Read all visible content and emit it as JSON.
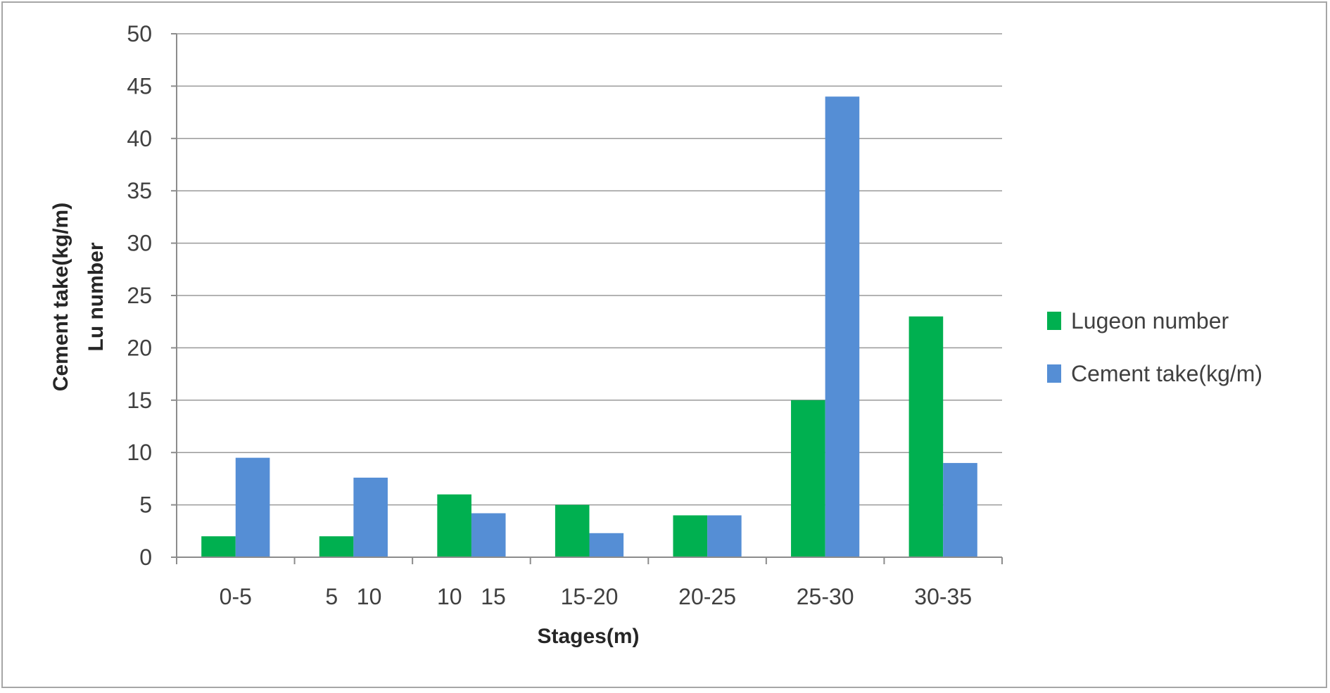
{
  "chart_data": {
    "type": "bar",
    "title": "",
    "xlabel": "Stages(m)",
    "ylabel_lines": [
      "Cement take(kg/m)",
      "Lu number"
    ],
    "categories": [
      "0-5",
      "5   10",
      "10   15",
      "15-20",
      "20-25",
      "25-30",
      "30-35"
    ],
    "series": [
      {
        "name": "Lugeon number",
        "color": "#00b050",
        "values": [
          2,
          2,
          6,
          5,
          4,
          15,
          23
        ]
      },
      {
        "name": "Cement take(kg/m)",
        "color": "#558ed5",
        "values": [
          9.5,
          7.6,
          4.2,
          2.3,
          4,
          44,
          9
        ]
      }
    ],
    "ylim": [
      0,
      50
    ],
    "yticks": [
      0,
      5,
      10,
      15,
      20,
      25,
      30,
      35,
      40,
      45,
      50
    ],
    "grid": true,
    "legend_position": "right"
  }
}
